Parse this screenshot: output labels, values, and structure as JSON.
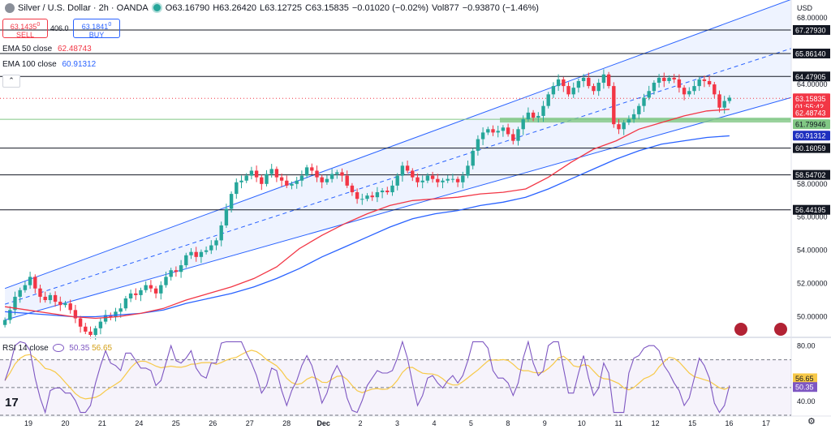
{
  "header": {
    "symbol": "Silver / U.S. Dollar · 2h · OANDA",
    "open": "O63.16790",
    "high": "H63.26420",
    "low": "L63.12725",
    "close": "C63.15835",
    "change": "−0.01020 (−0.02%)",
    "volume": "Vol877",
    "volume_change": "−0.93870 (−1.46%)"
  },
  "trade": {
    "sell_price": "63.1435",
    "sell_price_sup": "0",
    "sell_label": "SELL",
    "spread": "406.0",
    "buy_price": "63.1841",
    "buy_price_sup": "0",
    "buy_label": "BUY"
  },
  "indicators": {
    "ema50_label": "EMA 50 close",
    "ema50_value": "62.48743",
    "ema100_label": "EMA 100 close",
    "ema100_value": "60.91312",
    "rsi_label": "RSI 14 close",
    "rsi_value": "50.35",
    "rsi_ma_value": "56.65"
  },
  "currency": "USD",
  "colors": {
    "up": "#26a69a",
    "down": "#f23645",
    "ema50": "#f23645",
    "ema100": "#2962ff",
    "channel": "#2962ff",
    "rsi": "#7e57c2",
    "rsi_ma": "#f7c948",
    "support_zone": "#81c784"
  },
  "chart_data": {
    "type": "candlestick",
    "x_ticks": [
      "19",
      "20",
      "21",
      "24",
      "25",
      "26",
      "27",
      "28",
      "Dec",
      "2",
      "3",
      "4",
      "5",
      "8",
      "9",
      "10",
      "11",
      "12",
      "15",
      "16",
      "17"
    ],
    "y_ticks": [
      "68.00000",
      "64.00000",
      "58.00000",
      "56.00000",
      "54.00000",
      "52.00000",
      "50.00000"
    ],
    "ylim": [
      48.9,
      68.5
    ],
    "horizontal_levels": [
      "67.27930",
      "65.86140",
      "64.47905",
      "60.16059",
      "58.54702",
      "56.44195"
    ],
    "support_zone": [
      "61.79946",
      "62.0"
    ],
    "price_tags": {
      "last": "63.15835",
      "countdown": "01:55:42",
      "ema50": "62.48743",
      "support": "61.79946",
      "ema100": "60.91312"
    },
    "channel": {
      "lower_start": [
        0,
        49.8
      ],
      "lower_end": [
        23.6,
        62.5
      ],
      "upper_start": [
        0,
        51.7
      ],
      "upper_end": [
        23.6,
        68.2
      ]
    },
    "closes": [
      49.8,
      50.4,
      51.2,
      51.6,
      51.9,
      52.4,
      51.7,
      51.2,
      51.0,
      51.3,
      50.9,
      50.7,
      50.8,
      50.4,
      49.9,
      49.4,
      49.1,
      48.9,
      49.3,
      49.7,
      50.1,
      50.0,
      50.3,
      50.5,
      51.1,
      51.4,
      51.3,
      51.6,
      51.9,
      51.7,
      51.4,
      51.9,
      52.4,
      52.8,
      52.7,
      53.1,
      53.7,
      53.9,
      53.6,
      53.9,
      54.0,
      54.3,
      54.6,
      55.5,
      56.5,
      57.4,
      58.1,
      58.2,
      58.5,
      58.8,
      58.4,
      58.0,
      58.6,
      58.9,
      58.4,
      58.2,
      57.9,
      58.0,
      58.2,
      58.5,
      59.0,
      58.8,
      58.4,
      58.1,
      58.3,
      58.6,
      58.7,
      58.5,
      57.9,
      57.5,
      57.1,
      57.1,
      57.3,
      57.2,
      57.5,
      57.6,
      57.5,
      57.9,
      58.5,
      59.1,
      58.8,
      58.4,
      58.1,
      58.2,
      58.5,
      58.3,
      58.1,
      58.2,
      58.3,
      58.3,
      58.1,
      58.5,
      59.1,
      60.0,
      60.7,
      61.1,
      61.3,
      61.1,
      61.2,
      61.4,
      61.0,
      60.6,
      61.3,
      61.9,
      62.3,
      62.0,
      62.1,
      62.7,
      63.4,
      63.9,
      64.3,
      63.9,
      63.4,
      63.8,
      64.2,
      64.4,
      63.9,
      63.6,
      64.1,
      64.6,
      63.9,
      61.6,
      61.3,
      61.7,
      61.9,
      62.2,
      62.7,
      63.2,
      63.6,
      64.1,
      64.4,
      64.2,
      64.4,
      64.3,
      63.8,
      63.4,
      63.6,
      63.9,
      64.3,
      64.2,
      64.0,
      63.4,
      62.6,
      63.0,
      63.2
    ],
    "ema50": [
      50.6,
      50.4,
      50.2,
      50.0,
      49.9,
      50.0,
      50.2,
      50.5,
      51.0,
      51.4,
      51.8,
      52.3,
      53.0,
      54.1,
      54.9,
      55.6,
      56.2,
      56.7,
      57.0,
      57.1,
      57.2,
      57.4,
      57.5,
      57.7,
      58.4,
      59.3,
      60.1,
      60.6,
      61.3,
      61.7,
      62.1,
      62.4,
      62.5
    ],
    "ema100": [
      50.3,
      50.2,
      50.1,
      50.0,
      50.0,
      50.1,
      50.2,
      50.4,
      50.8,
      51.1,
      51.4,
      51.8,
      52.3,
      52.9,
      53.6,
      54.2,
      54.8,
      55.4,
      55.9,
      56.2,
      56.4,
      56.7,
      56.9,
      57.2,
      57.7,
      58.3,
      58.9,
      59.5,
      60.0,
      60.4,
      60.6,
      60.8,
      60.9
    ],
    "rsi": {
      "ylim": [
        30,
        85
      ],
      "y_ticks": [
        "80.00",
        "40.00"
      ],
      "guides": [
        70,
        50,
        30
      ],
      "last": "50.35",
      "ma_last": "56.65"
    }
  }
}
